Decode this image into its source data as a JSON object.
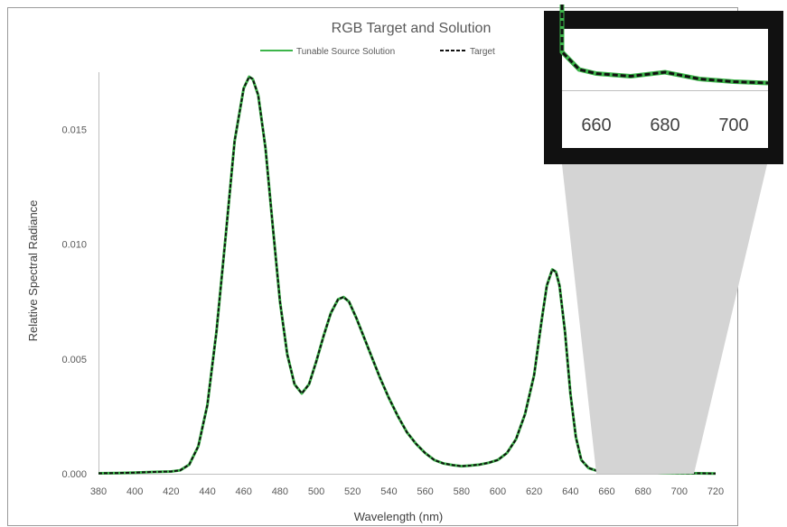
{
  "chart_data": {
    "type": "line",
    "title": "RGB Target and Solution",
    "xlabel": "Wavelength (nm)",
    "ylabel": "Relative Spectral Radiance",
    "xlim": [
      380,
      720
    ],
    "ylim": [
      0,
      0.0175
    ],
    "x_ticks": [
      "380",
      "400",
      "420",
      "440",
      "460",
      "480",
      "500",
      "520",
      "540",
      "560",
      "580",
      "600",
      "620",
      "640",
      "660",
      "680",
      "700",
      "720"
    ],
    "y_ticks": [
      "0.000",
      "0.005",
      "0.010",
      "0.015"
    ],
    "legend_position": "top",
    "series": [
      {
        "name": "Tunable Source Solution",
        "color": "#3cb54a",
        "style": "solid",
        "x": [
          380,
          390,
          400,
          410,
          420,
          425,
          430,
          435,
          440,
          445,
          450,
          455,
          460,
          463,
          465,
          468,
          472,
          476,
          480,
          484,
          488,
          492,
          496,
          500,
          504,
          508,
          512,
          515,
          518,
          522,
          526,
          530,
          535,
          540,
          545,
          550,
          555,
          560,
          565,
          570,
          575,
          580,
          585,
          590,
          595,
          600,
          605,
          610,
          615,
          620,
          624,
          627,
          630,
          632,
          634,
          637,
          640,
          643,
          646,
          650,
          655,
          660,
          670,
          680,
          690,
          700,
          710,
          720
        ],
        "y": [
          2e-05,
          3e-05,
          5e-05,
          8e-05,
          0.0001,
          0.00015,
          0.0004,
          0.0012,
          0.003,
          0.0062,
          0.0103,
          0.0145,
          0.0168,
          0.0173,
          0.0172,
          0.0165,
          0.0142,
          0.0108,
          0.0075,
          0.0052,
          0.0039,
          0.0035,
          0.0039,
          0.0049,
          0.006,
          0.007,
          0.0076,
          0.0077,
          0.0075,
          0.0068,
          0.006,
          0.0052,
          0.0042,
          0.0033,
          0.0025,
          0.0018,
          0.0013,
          0.0009,
          0.0006,
          0.00045,
          0.00038,
          0.00033,
          0.00036,
          0.0004,
          0.00048,
          0.0006,
          0.0009,
          0.0015,
          0.0026,
          0.0043,
          0.0066,
          0.0082,
          0.0089,
          0.0088,
          0.0082,
          0.0062,
          0.0035,
          0.0016,
          0.0006,
          0.00025,
          0.00012,
          9e-05,
          7e-05,
          0.0001,
          5e-05,
          3e-05,
          2e-05,
          1e-05
        ]
      },
      {
        "name": "Target",
        "color": "#111111",
        "style": "dashed",
        "x": [
          380,
          390,
          400,
          410,
          420,
          425,
          430,
          435,
          440,
          445,
          450,
          455,
          460,
          463,
          465,
          468,
          472,
          476,
          480,
          484,
          488,
          492,
          496,
          500,
          504,
          508,
          512,
          515,
          518,
          522,
          526,
          530,
          535,
          540,
          545,
          550,
          555,
          560,
          565,
          570,
          575,
          580,
          585,
          590,
          595,
          600,
          605,
          610,
          615,
          620,
          624,
          627,
          630,
          632,
          634,
          637,
          640,
          643,
          646,
          650,
          655,
          660,
          670,
          680,
          690,
          700,
          710,
          720
        ],
        "y": [
          2e-05,
          3e-05,
          5e-05,
          8e-05,
          0.0001,
          0.00015,
          0.0004,
          0.0012,
          0.003,
          0.0062,
          0.0103,
          0.0145,
          0.0168,
          0.0173,
          0.0172,
          0.0165,
          0.0142,
          0.0108,
          0.0075,
          0.0052,
          0.0039,
          0.0035,
          0.0039,
          0.0049,
          0.006,
          0.007,
          0.0076,
          0.0077,
          0.0075,
          0.0068,
          0.006,
          0.0052,
          0.0042,
          0.0033,
          0.0025,
          0.0018,
          0.0013,
          0.0009,
          0.0006,
          0.00045,
          0.00038,
          0.00033,
          0.00036,
          0.0004,
          0.00048,
          0.0006,
          0.0009,
          0.0015,
          0.0026,
          0.0043,
          0.0066,
          0.0082,
          0.0089,
          0.0088,
          0.0082,
          0.0062,
          0.0035,
          0.0016,
          0.0006,
          0.00025,
          0.00012,
          9e-05,
          7e-05,
          0.0001,
          5e-05,
          3e-05,
          2e-05,
          1e-05
        ]
      }
    ],
    "inset": {
      "x_ticks": [
        "660",
        "680",
        "700"
      ],
      "xlim": [
        650,
        710
      ]
    }
  }
}
